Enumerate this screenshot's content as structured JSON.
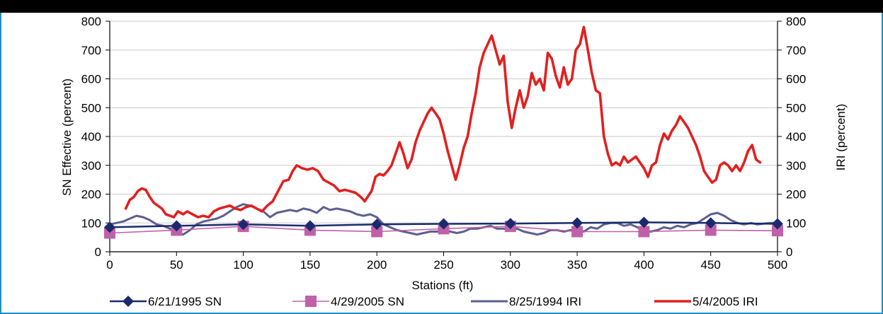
{
  "chart_data": {
    "type": "line",
    "xlabel": "Stations (ft)",
    "ylabel_left": "SN Effective (percent)",
    "ylabel_right": "IRI (percent)",
    "xlim": [
      0,
      500
    ],
    "ylim_left": [
      0,
      800
    ],
    "ylim_right": [
      0,
      800
    ],
    "x_ticks": [
      "0",
      "50",
      "100",
      "150",
      "200",
      "250",
      "300",
      "350",
      "400",
      "450",
      "500"
    ],
    "y_ticks_left": [
      "0",
      "100",
      "200",
      "300",
      "400",
      "500",
      "600",
      "700",
      "800"
    ],
    "y_ticks_right": [
      "0",
      "100",
      "200",
      "300",
      "400",
      "500",
      "600",
      "700",
      "800"
    ],
    "grid": "horizontal",
    "legend_position": "bottom",
    "series": [
      {
        "name": "6/21/1995 SN",
        "axis": "left",
        "color": "#1a2a6c",
        "marker": "diamond",
        "x": [
          0,
          50,
          100,
          150,
          200,
          250,
          300,
          350,
          400,
          450,
          500
        ],
        "y": [
          85,
          90,
          95,
          90,
          95,
          97,
          98,
          100,
          102,
          100,
          97
        ]
      },
      {
        "name": "4/29/2005 SN",
        "axis": "left",
        "color": "#c060a8",
        "marker": "square",
        "x": [
          0,
          50,
          100,
          150,
          200,
          250,
          300,
          350,
          400,
          450,
          500
        ],
        "y": [
          65,
          75,
          88,
          75,
          70,
          80,
          88,
          70,
          70,
          75,
          73
        ]
      },
      {
        "name": "8/25/1994 IRI",
        "axis": "right",
        "color": "#5c5f8f",
        "marker": "none",
        "x": [
          0,
          5,
          10,
          15,
          20,
          25,
          30,
          35,
          40,
          45,
          50,
          55,
          60,
          65,
          70,
          75,
          80,
          85,
          90,
          95,
          100,
          105,
          110,
          115,
          120,
          125,
          130,
          135,
          140,
          145,
          150,
          155,
          160,
          165,
          170,
          175,
          180,
          185,
          190,
          195,
          200,
          205,
          210,
          215,
          220,
          225,
          230,
          235,
          240,
          245,
          250,
          255,
          260,
          265,
          270,
          275,
          280,
          285,
          290,
          295,
          300,
          305,
          310,
          315,
          320,
          325,
          330,
          335,
          340,
          345,
          350,
          355,
          360,
          365,
          370,
          375,
          380,
          385,
          390,
          395,
          400,
          405,
          410,
          415,
          420,
          425,
          430,
          435,
          440,
          445,
          450,
          455,
          460,
          465,
          470,
          475,
          480,
          485,
          490,
          495,
          500
        ],
        "y": [
          95,
          100,
          105,
          115,
          125,
          120,
          110,
          95,
          90,
          80,
          65,
          60,
          75,
          95,
          105,
          110,
          115,
          125,
          140,
          155,
          165,
          160,
          150,
          140,
          120,
          135,
          140,
          145,
          140,
          150,
          145,
          135,
          155,
          145,
          150,
          145,
          140,
          130,
          125,
          130,
          120,
          95,
          85,
          75,
          70,
          65,
          60,
          65,
          70,
          70,
          75,
          70,
          65,
          70,
          80,
          80,
          85,
          90,
          80,
          80,
          75,
          80,
          70,
          65,
          60,
          65,
          75,
          75,
          70,
          75,
          75,
          70,
          85,
          80,
          95,
          100,
          100,
          90,
          95,
          85,
          75,
          70,
          75,
          85,
          80,
          90,
          85,
          95,
          100,
          115,
          130,
          135,
          125,
          110,
          100,
          95,
          100,
          95,
          98,
          100,
          100
        ]
      },
      {
        "name": "5/4/2005 IRI",
        "axis": "right",
        "color": "#e02020",
        "marker": "none",
        "x": [
          12,
          15,
          18,
          21,
          24,
          27,
          30,
          33,
          36,
          39,
          42,
          45,
          48,
          51,
          55,
          58,
          62,
          66,
          70,
          74,
          78,
          82,
          86,
          90,
          94,
          98,
          102,
          106,
          110,
          114,
          118,
          122,
          126,
          130,
          134,
          137,
          140,
          144,
          148,
          152,
          156,
          160,
          164,
          168,
          172,
          176,
          180,
          184,
          188,
          191,
          193,
          196,
          199,
          202,
          205,
          208,
          211,
          214,
          217,
          220,
          223,
          226,
          229,
          232,
          235,
          238,
          241,
          244,
          247,
          250,
          253,
          256,
          259,
          262,
          265,
          268,
          271,
          274,
          277,
          280,
          283,
          286,
          289,
          292,
          295,
          298,
          301,
          304,
          307,
          310,
          313,
          316,
          319,
          322,
          325,
          328,
          331,
          334,
          337,
          340,
          343,
          346,
          349,
          352,
          355,
          358,
          361,
          364,
          367,
          370,
          373,
          376,
          379,
          382,
          385,
          388,
          391,
          394,
          397,
          400,
          403,
          406,
          409,
          412,
          415,
          418,
          421,
          424,
          427,
          430,
          433,
          436,
          439,
          442,
          445,
          448,
          451,
          454,
          457,
          460,
          463,
          466,
          469,
          472,
          475,
          478,
          481,
          484,
          487
        ],
        "y": [
          150,
          180,
          190,
          210,
          220,
          215,
          190,
          170,
          160,
          150,
          130,
          125,
          120,
          140,
          130,
          140,
          130,
          120,
          125,
          120,
          140,
          150,
          155,
          160,
          150,
          145,
          155,
          160,
          150,
          140,
          160,
          175,
          210,
          245,
          250,
          280,
          300,
          290,
          285,
          290,
          280,
          250,
          240,
          230,
          210,
          215,
          210,
          205,
          190,
          175,
          190,
          210,
          260,
          270,
          265,
          280,
          300,
          340,
          380,
          340,
          290,
          320,
          380,
          420,
          450,
          480,
          500,
          480,
          460,
          410,
          350,
          300,
          250,
          300,
          360,
          400,
          480,
          550,
          640,
          690,
          720,
          750,
          700,
          650,
          680,
          520,
          430,
          500,
          560,
          500,
          540,
          620,
          580,
          600,
          560,
          690,
          670,
          610,
          570,
          640,
          580,
          600,
          700,
          720,
          780,
          700,
          620,
          560,
          550,
          400,
          340,
          300,
          310,
          300,
          330,
          310,
          320,
          330,
          310,
          290,
          260,
          300,
          310,
          370,
          410,
          390,
          420,
          440,
          470,
          450,
          430,
          400,
          370,
          330,
          280,
          260,
          240,
          250,
          300,
          310,
          300,
          280,
          300,
          280,
          310,
          350,
          370,
          320,
          310
        ]
      }
    ]
  }
}
